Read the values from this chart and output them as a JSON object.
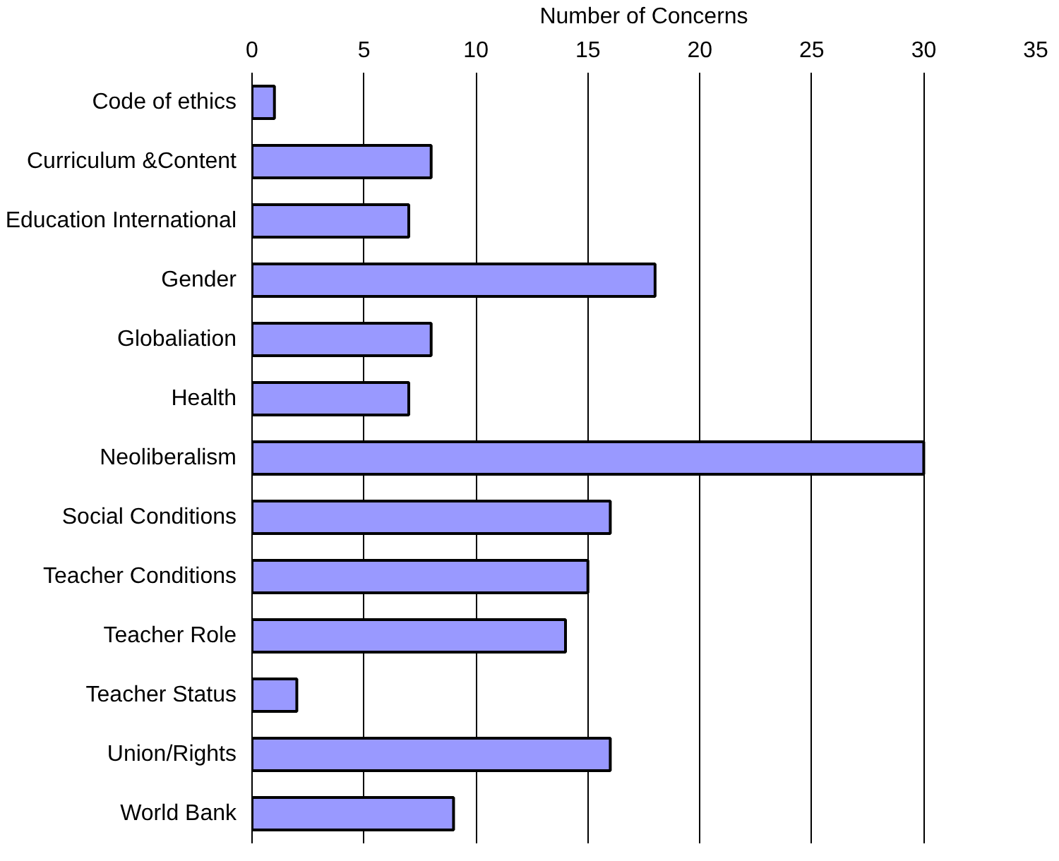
{
  "chart_data": {
    "type": "bar",
    "orientation": "horizontal",
    "xlabel": "Number of Concerns",
    "categories": [
      "Code of ethics",
      "Curriculum &Content",
      "Education International",
      "Gender",
      "Globaliation",
      "Health",
      "Neoliberalism",
      "Social Conditions",
      "Teacher Conditions",
      "Teacher Role",
      "Teacher Status",
      "Union/Rights",
      "World Bank"
    ],
    "values": [
      1,
      8,
      7,
      18,
      8,
      7,
      30,
      16,
      15,
      14,
      2,
      16,
      9
    ],
    "color": "#9999ff",
    "xlim": [
      0,
      35
    ],
    "xticks": [
      0,
      5,
      10,
      15,
      20,
      25,
      30,
      35
    ],
    "grid": "x"
  }
}
